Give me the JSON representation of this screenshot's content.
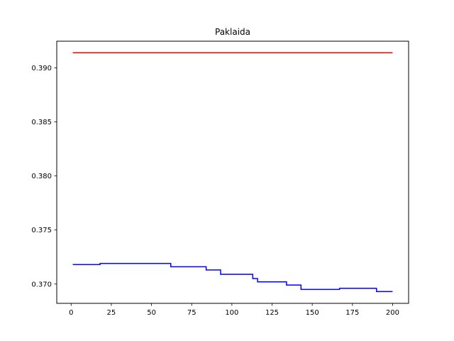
{
  "chart_data": {
    "type": "line",
    "title": "Paklaida",
    "xlabel": "",
    "ylabel": "",
    "xlim": [
      -8.95,
      209.95
    ],
    "ylim": [
      0.36821,
      0.39247
    ],
    "x_ticks": [
      0,
      25,
      50,
      75,
      100,
      125,
      150,
      175,
      200
    ],
    "x_tick_labels": [
      "0",
      "25",
      "50",
      "75",
      "100",
      "125",
      "150",
      "175",
      "200"
    ],
    "y_ticks": [
      0.37,
      0.375,
      0.38,
      0.385,
      0.39
    ],
    "y_tick_labels": [
      "0.370",
      "0.375",
      "0.380",
      "0.385",
      "0.390"
    ],
    "grid": false,
    "legend": null,
    "series": [
      {
        "color": "#ff0000",
        "style": "steps",
        "x": [
          1,
          200
        ],
        "y": [
          0.3914,
          0.3914
        ]
      },
      {
        "color": "#0000ff",
        "style": "steps",
        "x": [
          1,
          18,
          61,
          62,
          84,
          93,
          113,
          115,
          116,
          134,
          143,
          167,
          190,
          200
        ],
        "y": [
          0.3718,
          0.3719,
          0.3719,
          0.3716,
          0.3713,
          0.3709,
          0.3705,
          0.3705,
          0.3702,
          0.3699,
          0.3695,
          0.3696,
          0.3693,
          0.3693
        ]
      }
    ]
  }
}
